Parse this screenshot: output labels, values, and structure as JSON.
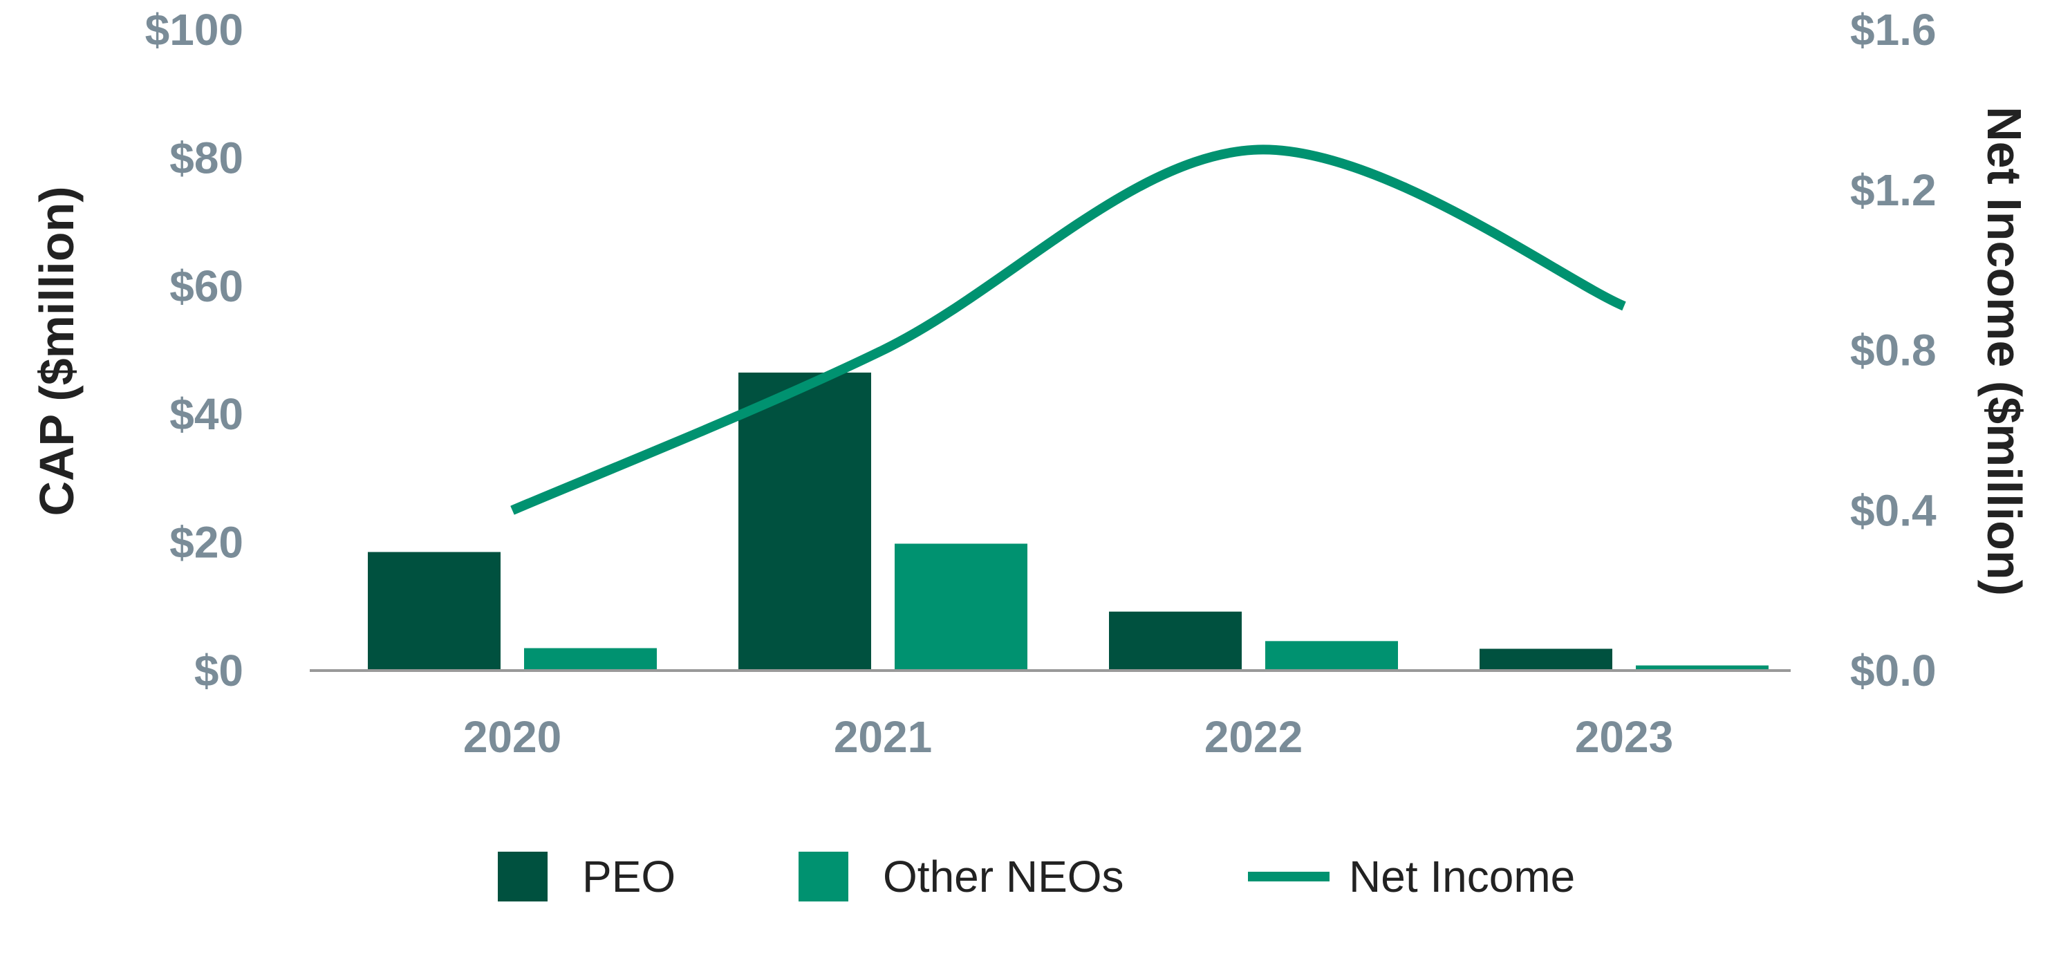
{
  "chart_data": {
    "type": "bar",
    "categories": [
      "2020",
      "2021",
      "2022",
      "2023"
    ],
    "series": [
      {
        "name": "PEO",
        "type": "bar",
        "axis": "left",
        "color": "#00513f",
        "values": [
          18.5,
          46.5,
          9.2,
          3.4
        ]
      },
      {
        "name": "Other NEOs",
        "type": "bar",
        "axis": "left",
        "color": "#009270",
        "values": [
          3.5,
          19.8,
          4.6,
          0.8
        ]
      },
      {
        "name": "Net Income",
        "type": "line",
        "smooth": true,
        "axis": "right",
        "color": "#009270",
        "values": [
          0.4,
          0.8,
          1.3,
          0.91
        ]
      }
    ],
    "y_left": {
      "label": "CAP ($million)",
      "range": [
        0,
        100
      ],
      "ticks": [
        0,
        20,
        40,
        60,
        80,
        100
      ],
      "tick_labels": [
        "$0",
        "$20",
        "$40",
        "$60",
        "$80",
        "$100"
      ]
    },
    "y_right": {
      "label": "Net Income ($million)",
      "range": [
        0,
        1.6
      ],
      "ticks": [
        0,
        0.4,
        0.8,
        1.2,
        1.6
      ],
      "tick_labels": [
        "$0.0",
        "$0.4",
        "$0.8",
        "$1.2",
        "$1.6"
      ]
    },
    "grid": false,
    "legend_position": "bottom",
    "axis_color": "#999999",
    "tick_color": "#7a8c98"
  }
}
